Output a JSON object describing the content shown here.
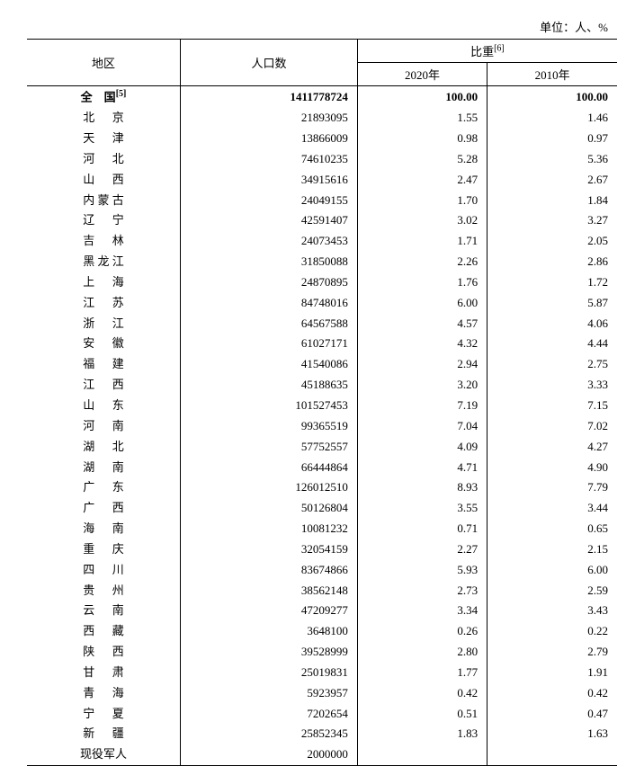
{
  "unit_text": "单位：人、%",
  "header": {
    "region": "地区",
    "population": "人口数",
    "proportion": "比重",
    "proportion_note": "[6]",
    "y2020": "2020年",
    "y2010": "2010年"
  },
  "total_row": {
    "region": "全　国",
    "region_note": "[5]",
    "population": "1411778724",
    "p2020": "100.00",
    "p2010": "100.00"
  },
  "rows": [
    {
      "region": "北　京",
      "population": "21893095",
      "p2020": "1.55",
      "p2010": "1.46"
    },
    {
      "region": "天　津",
      "population": "13866009",
      "p2020": "0.98",
      "p2010": "0.97"
    },
    {
      "region": "河　北",
      "population": "74610235",
      "p2020": "5.28",
      "p2010": "5.36"
    },
    {
      "region": "山　西",
      "population": "34915616",
      "p2020": "2.47",
      "p2010": "2.67"
    },
    {
      "region": "内蒙古",
      "population": "24049155",
      "p2020": "1.70",
      "p2010": "1.84"
    },
    {
      "region": "辽　宁",
      "population": "42591407",
      "p2020": "3.02",
      "p2010": "3.27"
    },
    {
      "region": "吉　林",
      "population": "24073453",
      "p2020": "1.71",
      "p2010": "2.05"
    },
    {
      "region": "黑龙江",
      "population": "31850088",
      "p2020": "2.26",
      "p2010": "2.86"
    },
    {
      "region": "上　海",
      "population": "24870895",
      "p2020": "1.76",
      "p2010": "1.72"
    },
    {
      "region": "江　苏",
      "population": "84748016",
      "p2020": "6.00",
      "p2010": "5.87"
    },
    {
      "region": "浙　江",
      "population": "64567588",
      "p2020": "4.57",
      "p2010": "4.06"
    },
    {
      "region": "安　徽",
      "population": "61027171",
      "p2020": "4.32",
      "p2010": "4.44"
    },
    {
      "region": "福　建",
      "population": "41540086",
      "p2020": "2.94",
      "p2010": "2.75"
    },
    {
      "region": "江　西",
      "population": "45188635",
      "p2020": "3.20",
      "p2010": "3.33"
    },
    {
      "region": "山　东",
      "population": "101527453",
      "p2020": "7.19",
      "p2010": "7.15"
    },
    {
      "region": "河　南",
      "population": "99365519",
      "p2020": "7.04",
      "p2010": "7.02"
    },
    {
      "region": "湖　北",
      "population": "57752557",
      "p2020": "4.09",
      "p2010": "4.27"
    },
    {
      "region": "湖　南",
      "population": "66444864",
      "p2020": "4.71",
      "p2010": "4.90"
    },
    {
      "region": "广　东",
      "population": "126012510",
      "p2020": "8.93",
      "p2010": "7.79"
    },
    {
      "region": "广　西",
      "population": "50126804",
      "p2020": "3.55",
      "p2010": "3.44"
    },
    {
      "region": "海　南",
      "population": "10081232",
      "p2020": "0.71",
      "p2010": "0.65"
    },
    {
      "region": "重　庆",
      "population": "32054159",
      "p2020": "2.27",
      "p2010": "2.15"
    },
    {
      "region": "四　川",
      "population": "83674866",
      "p2020": "5.93",
      "p2010": "6.00"
    },
    {
      "region": "贵　州",
      "population": "38562148",
      "p2020": "2.73",
      "p2010": "2.59"
    },
    {
      "region": "云　南",
      "population": "47209277",
      "p2020": "3.34",
      "p2010": "3.43"
    },
    {
      "region": "西　藏",
      "population": "3648100",
      "p2020": "0.26",
      "p2010": "0.22"
    },
    {
      "region": "陕　西",
      "population": "39528999",
      "p2020": "2.80",
      "p2010": "2.79"
    },
    {
      "region": "甘　肃",
      "population": "25019831",
      "p2020": "1.77",
      "p2010": "1.91"
    },
    {
      "region": "青　海",
      "population": "5923957",
      "p2020": "0.42",
      "p2010": "0.42"
    },
    {
      "region": "宁　夏",
      "population": "7202654",
      "p2020": "0.51",
      "p2010": "0.47"
    },
    {
      "region": "新　疆",
      "population": "25852345",
      "p2020": "1.83",
      "p2010": "1.63"
    },
    {
      "region": "现役军人",
      "population": "2000000",
      "p2020": "",
      "p2010": ""
    }
  ],
  "style": {
    "font_family": "SimSun",
    "font_size_pt": 10,
    "text_color": "#000000",
    "background_color": "#ffffff",
    "border_color": "#000000",
    "columns": [
      "地区",
      "人口数",
      "2020年",
      "2010年"
    ],
    "column_align": [
      "center",
      "right",
      "right",
      "right"
    ]
  }
}
